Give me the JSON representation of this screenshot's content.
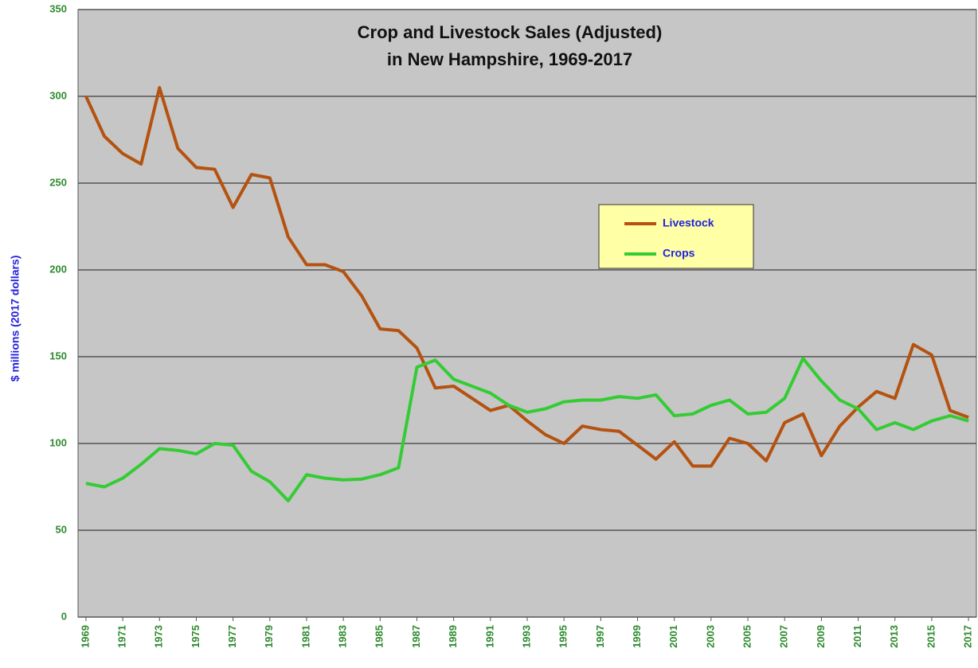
{
  "chart_data": {
    "type": "line",
    "title": [
      "Crop and Livestock Sales (Adjusted)",
      "in New Hampshire, 1969-2017"
    ],
    "y_label": "$ millions (2017 dollars)",
    "x": [
      1969,
      1970,
      1971,
      1972,
      1973,
      1974,
      1975,
      1976,
      1977,
      1978,
      1979,
      1980,
      1981,
      1982,
      1983,
      1984,
      1985,
      1986,
      1987,
      1988,
      1989,
      1990,
      1991,
      1992,
      1993,
      1994,
      1995,
      1996,
      1997,
      1998,
      1999,
      2000,
      2001,
      2002,
      2003,
      2004,
      2005,
      2006,
      2007,
      2008,
      2009,
      2010,
      2011,
      2012,
      2013,
      2014,
      2015,
      2016,
      2017
    ],
    "series": [
      {
        "name": "Livestock",
        "color": "#b5520f",
        "values": [
          300,
          277,
          267,
          261,
          305,
          270,
          259,
          258,
          236,
          255,
          253,
          219,
          203,
          203,
          199,
          185,
          166,
          165,
          155,
          132,
          133,
          126,
          119,
          122,
          113,
          105,
          100,
          110,
          108,
          107,
          99,
          91,
          101,
          87,
          87,
          103,
          100,
          90,
          112,
          117,
          93,
          110,
          121,
          130,
          126,
          157,
          151,
          119,
          115
        ]
      },
      {
        "name": "Crops",
        "color": "#33cc33",
        "values": [
          77,
          75,
          80,
          88,
          97,
          96,
          94,
          100,
          99,
          84,
          78,
          67,
          82,
          80,
          79,
          79.5,
          82,
          86,
          144,
          148,
          137,
          133,
          129,
          122,
          118,
          120,
          124,
          125,
          125,
          127,
          126,
          128,
          116,
          117,
          122,
          125,
          117,
          118,
          126,
          149,
          136,
          125,
          120,
          108,
          112,
          108,
          113,
          116,
          113
        ]
      }
    ],
    "xlim": [
      1968.57,
      2017.43
    ],
    "xticks": [
      1969,
      1971,
      1973,
      1975,
      1977,
      1979,
      1981,
      1983,
      1985,
      1987,
      1989,
      1991,
      1993,
      1995,
      1997,
      1999,
      2001,
      2003,
      2005,
      2007,
      2009,
      2011,
      2013,
      2015,
      2017
    ],
    "ylim": [
      0,
      350
    ],
    "yticks": [
      0,
      50,
      100,
      150,
      200,
      250,
      300,
      350
    ],
    "grid": true,
    "legend": "center-right"
  }
}
